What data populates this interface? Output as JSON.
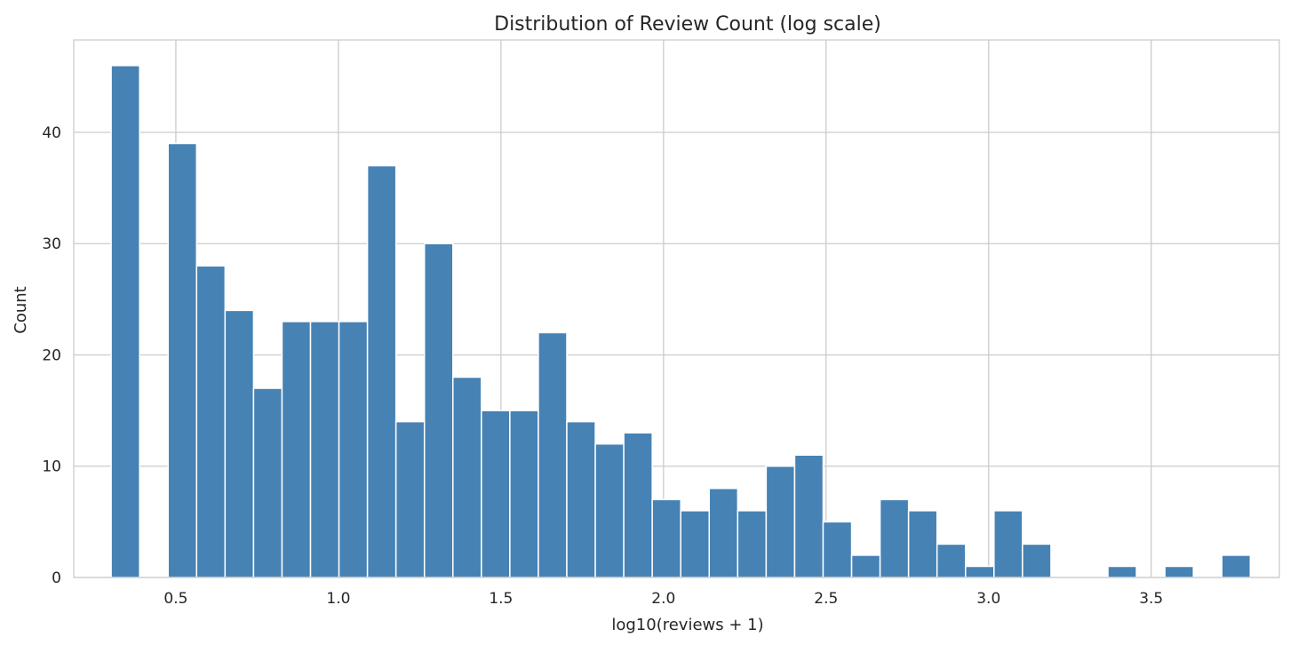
{
  "chart_data": {
    "type": "bar",
    "title": "Distribution of Review Count (log scale)",
    "xlabel": "log10(reviews + 1)",
    "ylabel": "Count",
    "xlim": [
      0.1859,
      3.8943
    ],
    "ylim": [
      0,
      48.3
    ],
    "grid": true,
    "bar_color": "#4682b4",
    "x_ticks": [
      "0.5",
      "1.0",
      "1.5",
      "2.0",
      "2.5",
      "3.0",
      "3.5"
    ],
    "y_ticks": [
      "0",
      "10",
      "20",
      "30",
      "40"
    ],
    "bin_start": 0.301,
    "bin_width": 0.0876,
    "values": [
      46,
      0,
      39,
      28,
      24,
      17,
      23,
      23,
      23,
      37,
      14,
      30,
      18,
      15,
      15,
      22,
      14,
      12,
      13,
      7,
      6,
      8,
      6,
      10,
      11,
      5,
      2,
      7,
      6,
      3,
      1,
      6,
      3,
      0,
      0,
      1,
      0,
      1,
      0,
      2
    ]
  }
}
